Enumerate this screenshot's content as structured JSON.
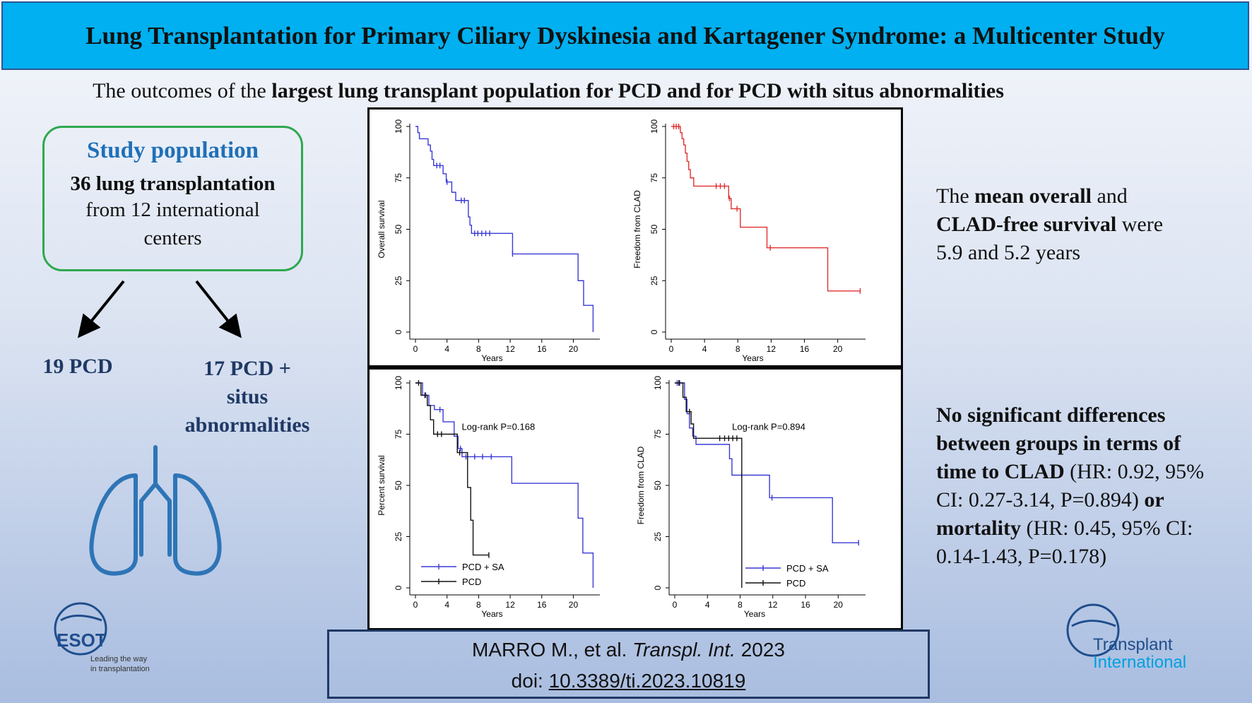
{
  "title": "Lung Transplantation for Primary Ciliary Dyskinesia and Kartagener Syndrome: a Multicenter Study",
  "subtitle": {
    "prefix": "The outcomes of the ",
    "bold": "largest lung transplant population for PCD and for PCD with situs abnormalities"
  },
  "study": {
    "heading": "Study population",
    "count": "36 lung transplantation",
    "from_line1": "from 12 international",
    "from_line2": "centers"
  },
  "groups": {
    "left": "19 PCD",
    "right_line1": "17 PCD +",
    "right_line2": "situs",
    "right_line3": "abnormalities"
  },
  "logos": {
    "esot": "ESOT",
    "esot_tag1": "Leading the way",
    "esot_tag2": "in transplantation",
    "ti1": "Transplant",
    "ti2": "International"
  },
  "findings1": {
    "p1": "The ",
    "b1": "mean overall",
    "p2": " and",
    "b2": "CLAD-free survival",
    "p3": " were",
    "p4": "5.9 and 5.2 years"
  },
  "findings2": {
    "b1": "No significant differences",
    "b2": "between  groups in terms of",
    "b3": "time to CLAD",
    "p1": " (HR: 0.92, 95%",
    "p2": "CI: 0.27-3.14, P=0.894) ",
    "b4": "or",
    "b5": "mortality",
    "p3": " (HR: 0.45, 95% CI:",
    "p4": "0.14-1.43, P=0.178)"
  },
  "citation": {
    "authors": "MARRO M., et al. ",
    "journal": "Transpl. Int.",
    "year": " 2023",
    "doi_label": "doi: ",
    "doi": "10.3389/ti.2023.10819"
  },
  "colors": {
    "banner": "#00b0f0",
    "heading_blue": "#1f70b8",
    "box_green": "#2fa84f",
    "lung_blue": "#2e75b6",
    "km_blue": "#3a3ad6",
    "km_red": "#e03030"
  },
  "chart_data": [
    {
      "type": "line",
      "step": true,
      "xlabel": "Years",
      "ylabel": "Overall survival",
      "xticks": [
        0,
        4,
        8,
        12,
        16,
        20
      ],
      "yticks": [
        0,
        25,
        50,
        75,
        100
      ],
      "xlim": [
        0,
        23
      ],
      "ylim": [
        0,
        100
      ],
      "series": [
        {
          "color": "#3a3ad6",
          "x": [
            0,
            0.3,
            0.5,
            1.2,
            1.6,
            1.9,
            2.1,
            2.3,
            3.5,
            3.9,
            4.6,
            5.1,
            5.5,
            6.7,
            6.9,
            7.1,
            12.3,
            20.6,
            21.3,
            22.5
          ],
          "y": [
            100,
            97,
            94,
            94,
            91,
            88,
            84,
            81,
            77,
            73,
            68,
            64,
            64,
            56,
            52,
            48,
            38,
            25,
            13,
            0
          ],
          "censor_x": [
            2.7,
            3.1,
            4.0,
            5.8,
            6.2,
            7.5,
            7.9,
            8.4,
            8.9,
            9.4,
            12.3
          ]
        }
      ]
    },
    {
      "type": "line",
      "step": true,
      "xlabel": "Years",
      "ylabel": "Freedom from CLAD",
      "xticks": [
        0,
        4,
        8,
        12,
        16,
        20
      ],
      "yticks": [
        0,
        25,
        50,
        75,
        100
      ],
      "xlim": [
        0,
        23
      ],
      "ylim": [
        0,
        100
      ],
      "series": [
        {
          "color": "#e03030",
          "x": [
            0,
            1.1,
            1.3,
            1.5,
            1.7,
            1.9,
            2.1,
            2.3,
            2.7,
            6.9,
            7.2,
            8.3,
            11.5,
            18.8,
            22.7
          ],
          "y": [
            100,
            97,
            94,
            91,
            87,
            83,
            79,
            75,
            71,
            65,
            60,
            51,
            41,
            20,
            20
          ],
          "censor_x": [
            0.3,
            0.6,
            0.9,
            5.4,
            5.9,
            6.4,
            7.0,
            7.9,
            11.9,
            22.7
          ]
        }
      ]
    },
    {
      "type": "line",
      "step": true,
      "xlabel": "Years",
      "ylabel": "Percent survival",
      "annotation": "Log-rank P=0.168",
      "legend": [
        "PCD + SA",
        "PCD"
      ],
      "legend_position": "bottom-left",
      "xticks": [
        0,
        4,
        8,
        12,
        16,
        20
      ],
      "yticks": [
        0,
        25,
        50,
        75,
        100
      ],
      "xlim": [
        0,
        23
      ],
      "ylim": [
        0,
        100
      ],
      "series": [
        {
          "name": "PCD + SA",
          "color": "#3a3ad6",
          "x": [
            0,
            0.3,
            0.9,
            1.7,
            2.1,
            2.4,
            3.5,
            4.9,
            5.4,
            5.9,
            12.2,
            20.6,
            21.2,
            22.5
          ],
          "y": [
            100,
            100,
            94,
            89,
            89,
            87,
            81,
            74,
            68,
            64,
            51,
            34,
            17,
            0
          ],
          "censor_x": [
            1.3,
            3.1,
            5.7,
            6.4,
            7.5,
            8.5,
            9.6
          ]
        },
        {
          "name": "PCD",
          "color": "#111111",
          "x": [
            0,
            0.7,
            1.5,
            1.9,
            2.3,
            5.3,
            6.6,
            7.0,
            7.3,
            9.3
          ],
          "y": [
            100,
            94,
            89,
            82,
            75,
            66,
            49,
            33,
            16,
            16
          ],
          "censor_x": [
            0.4,
            1.2,
            2.8,
            3.3,
            5.6,
            9.3
          ]
        }
      ]
    },
    {
      "type": "line",
      "step": true,
      "xlabel": "Years",
      "ylabel": "Freedom from CLAD",
      "annotation": "Log-rank P=0.894",
      "legend": [
        "PCD + SA",
        "PCD"
      ],
      "legend_position": "bottom-right",
      "xticks": [
        0,
        4,
        8,
        12,
        16,
        20
      ],
      "yticks": [
        0,
        25,
        50,
        75,
        100
      ],
      "xlim": [
        0,
        23
      ],
      "ylim": [
        0,
        100
      ],
      "series": [
        {
          "name": "PCD + SA",
          "color": "#3a3ad6",
          "x": [
            0,
            1.2,
            1.5,
            1.8,
            2.2,
            2.6,
            6.7,
            7.0,
            11.6,
            19.3,
            22.5
          ],
          "y": [
            100,
            92,
            85,
            78,
            74,
            70,
            63,
            55,
            44,
            22,
            22
          ],
          "censor_x": [
            0.3,
            0.6,
            8.2,
            11.9,
            22.5
          ]
        },
        {
          "name": "PCD",
          "color": "#111111",
          "x": [
            0,
            1.0,
            1.4,
            2.0,
            2.3,
            8.2
          ],
          "y": [
            100,
            93,
            86,
            80,
            73,
            0
          ],
          "censor_x": [
            0.5,
            1.8,
            5.5,
            6.1,
            6.6,
            7.1,
            7.6
          ]
        }
      ]
    }
  ]
}
